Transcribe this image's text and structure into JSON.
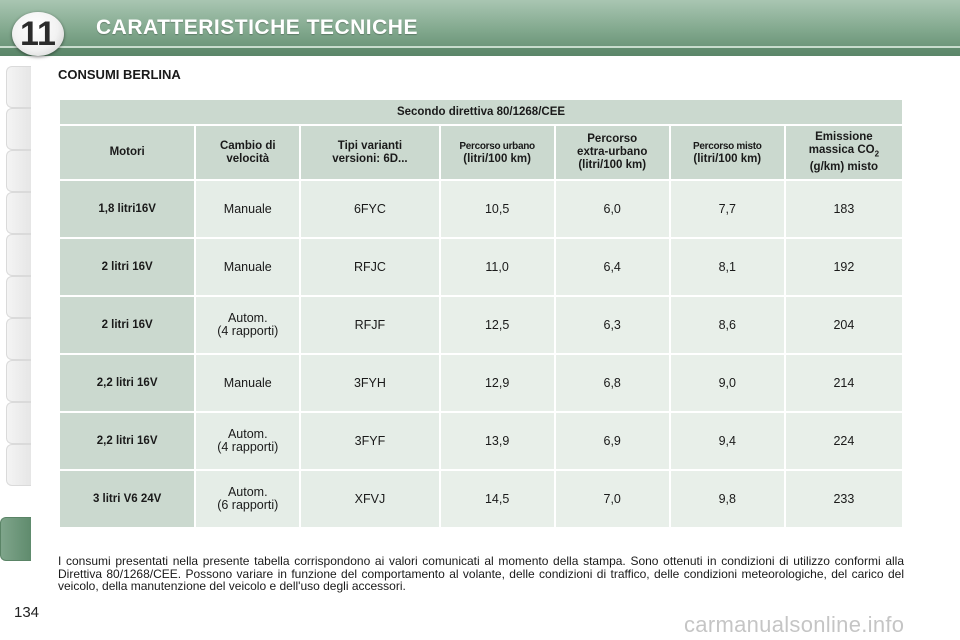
{
  "chapter": {
    "number": "11",
    "title": "CARATTERISTICHE TECNICHE"
  },
  "section_title": "CONSUMI BERLINA",
  "table": {
    "caption": "Secondo direttiva 80/1268/CEE",
    "headers": {
      "motori": "Motori",
      "cambio_line1": "Cambio di",
      "cambio_line2": "velocità",
      "tipi_line1": "Tipi varianti",
      "tipi_line2": "versioni: 6D...",
      "urbano_line1": "Percorso urbano",
      "urbano_line2": "(litri/100 km)",
      "extra_line1": "Percorso",
      "extra_line2": "extra-urbano",
      "extra_line3": "(litri/100 km)",
      "misto_line1": "Percorso misto",
      "misto_line2": "(litri/100 km)",
      "emis_line1": "Emissione",
      "emis_line2a": "massica CO",
      "emis_sub": "2",
      "emis_line3": "(g/km) misto"
    },
    "rows": [
      {
        "motore": "1,8 litri16V",
        "cambio1": "Manuale",
        "cambio2": "",
        "tipo": "6FYC",
        "urbano": "10,5",
        "extra": "6,0",
        "misto": "7,7",
        "co2": "183"
      },
      {
        "motore": "2 litri 16V",
        "cambio1": "Manuale",
        "cambio2": "",
        "tipo": "RFJC",
        "urbano": "11,0",
        "extra": "6,4",
        "misto": "8,1",
        "co2": "192"
      },
      {
        "motore": "2 litri 16V",
        "cambio1": "Autom.",
        "cambio2": "(4 rapporti)",
        "tipo": "RFJF",
        "urbano": "12,5",
        "extra": "6,3",
        "misto": "8,6",
        "co2": "204"
      },
      {
        "motore": "2,2 litri 16V",
        "cambio1": "Manuale",
        "cambio2": "",
        "tipo": "3FYH",
        "urbano": "12,9",
        "extra": "6,8",
        "misto": "9,0",
        "co2": "214"
      },
      {
        "motore": "2,2 litri 16V",
        "cambio1": "Autom.",
        "cambio2": "(4 rapporti)",
        "tipo": "3FYF",
        "urbano": "13,9",
        "extra": "6,9",
        "misto": "9,4",
        "co2": "224"
      },
      {
        "motore": "3 litri V6 24V",
        "cambio1": "Autom.",
        "cambio2": "(6 rapporti)",
        "tipo": "XFVJ",
        "urbano": "14,5",
        "extra": "7,0",
        "misto": "9,8",
        "co2": "233"
      }
    ]
  },
  "footnote": "I consumi presentati nella presente tabella corrispondono ai valori comunicati al momento della stampa. Sono ottenuti in condizioni di utilizzo conformi alla Direttiva 80/1268/CEE. Possono variare in funzione del comportamento al volante, delle condizioni di traffico, delle condizioni meteorologiche, del carico del veicolo, della manutenzione del veicolo e dell'uso degli accessori.",
  "page_number": "134",
  "watermark": "carmanualsonline.info",
  "colors": {
    "header_green": "#6f9a7d",
    "cell_dark": "#cbd9cf",
    "cell_light": "#e5ede7"
  }
}
